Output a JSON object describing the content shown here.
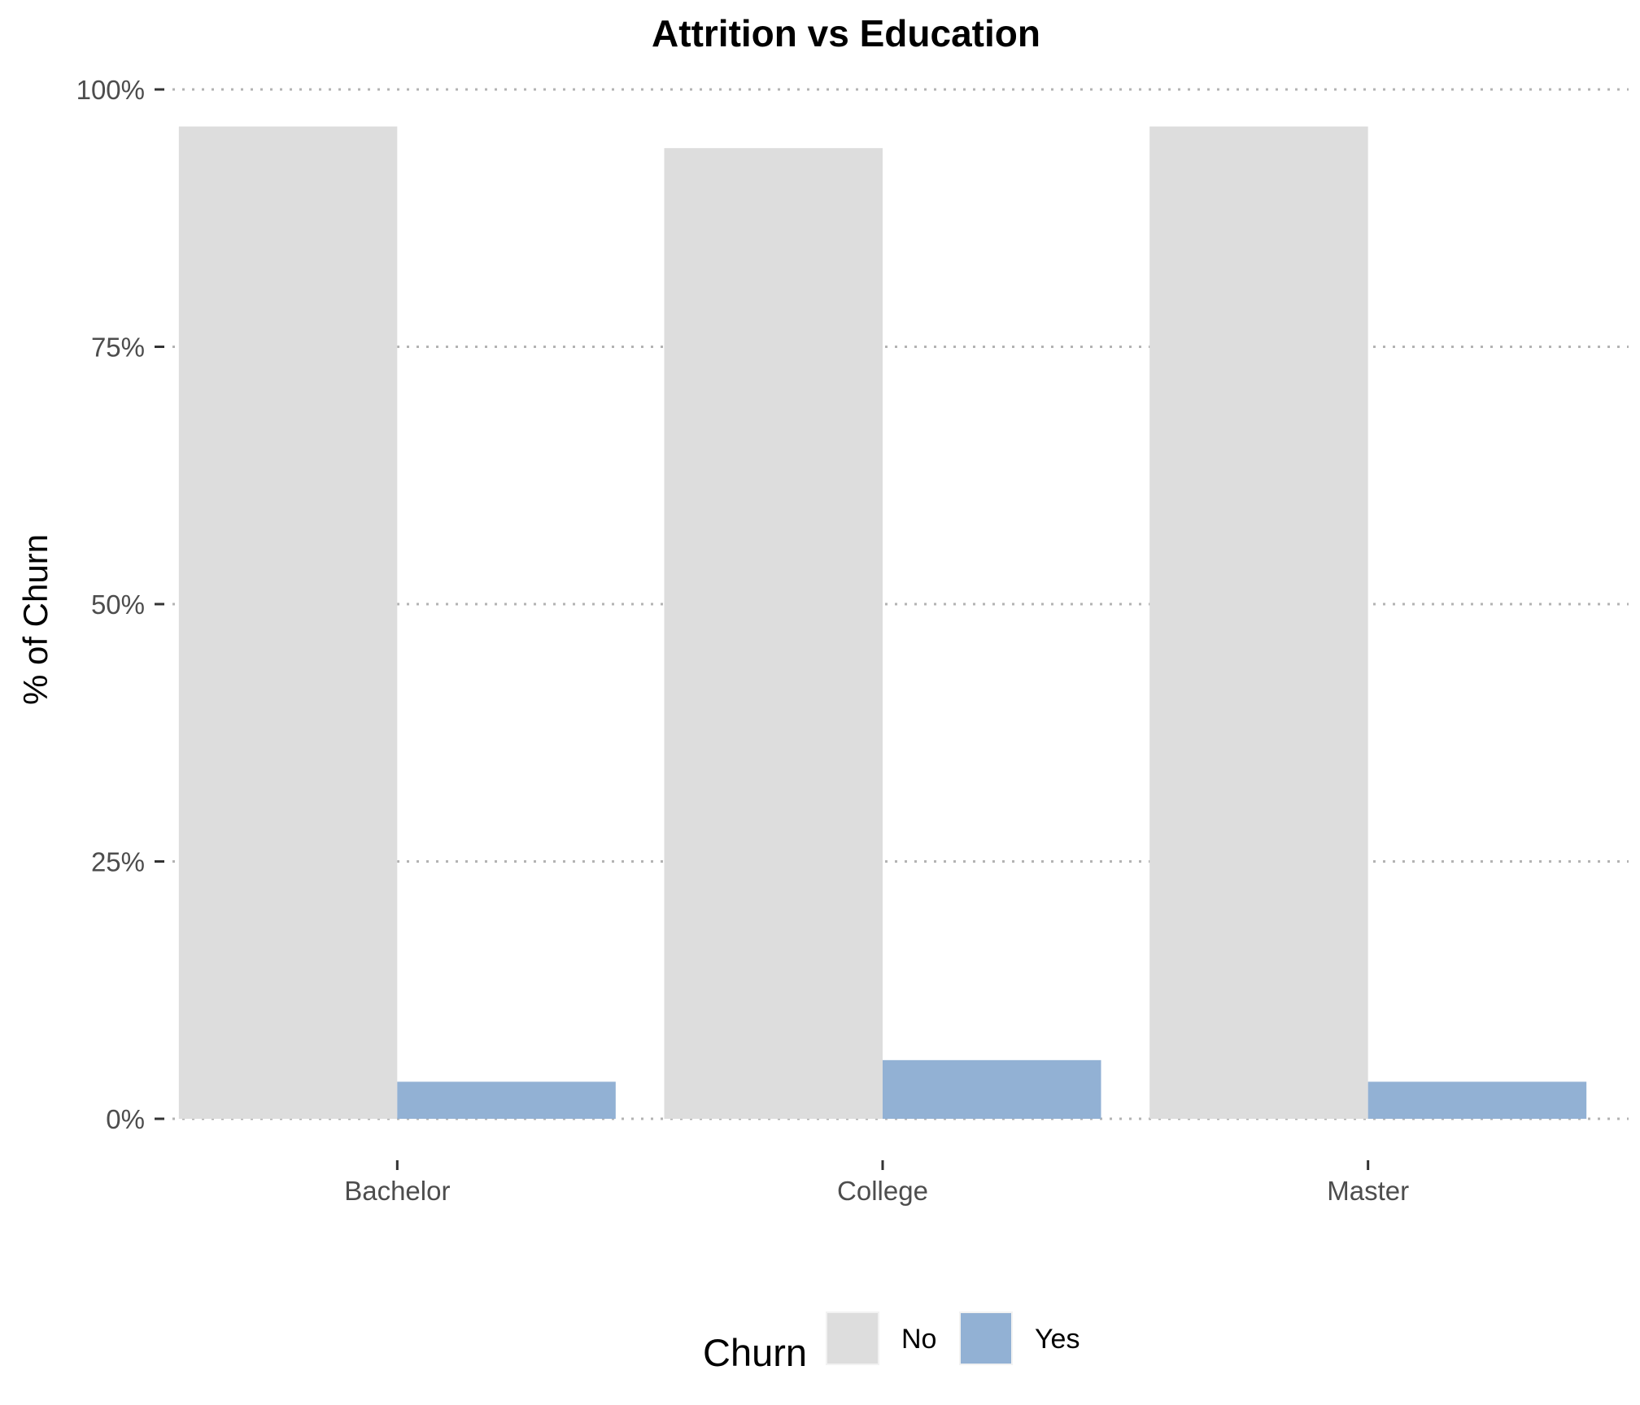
{
  "chart_data": {
    "type": "bar",
    "title": "Attrition vs Education",
    "xlabel": "",
    "ylabel": "% of Churn",
    "categories": [
      "Bachelor",
      "College",
      "Master"
    ],
    "series": [
      {
        "name": "No",
        "values": [
          96.4,
          94.3,
          96.4
        ],
        "color": "#dddddd"
      },
      {
        "name": "Yes",
        "values": [
          3.6,
          5.7,
          3.6
        ],
        "color": "#92b1d4"
      }
    ],
    "ylim": [
      0,
      100
    ],
    "yticks": [
      0,
      25,
      50,
      75,
      100
    ],
    "ytick_labels": [
      "0%",
      "25%",
      "50%",
      "75%",
      "100%"
    ],
    "grid": "horizontal dotted",
    "legend": {
      "title": "Churn",
      "position": "bottom",
      "items": [
        "No",
        "Yes"
      ]
    }
  }
}
